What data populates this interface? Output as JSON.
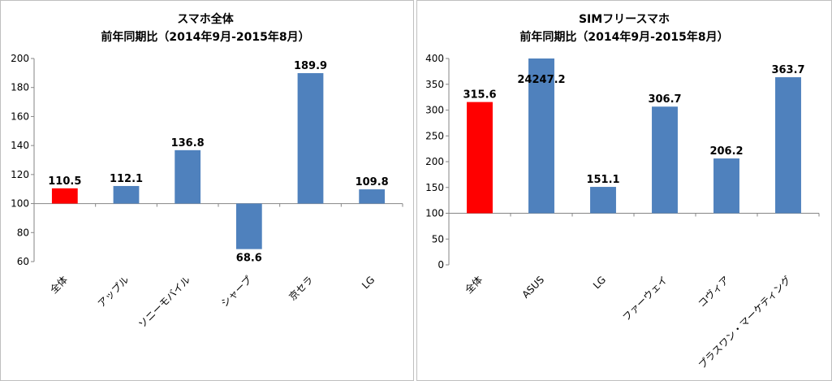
{
  "chart_data": [
    {
      "type": "bar",
      "title": "スマホ全体",
      "subtitle": "前年同期比（2014年9月-2015年8月）",
      "xlabel": "",
      "ylabel": "",
      "ylim": [
        60,
        200
      ],
      "yticks": [
        60,
        80,
        100,
        120,
        140,
        160,
        180,
        200
      ],
      "baseline": 100,
      "grid": false,
      "categories": [
        "全体",
        "アップル",
        "ソニーモバイル",
        "シャープ",
        "京セラ",
        "LG"
      ],
      "values": [
        110.5,
        112.1,
        136.8,
        68.6,
        189.9,
        109.8
      ],
      "value_labels": [
        "110.5",
        "112.1",
        "136.8",
        "68.6",
        "189.9",
        "109.8"
      ],
      "colors": [
        "#ff0000",
        "#4f81bd",
        "#4f81bd",
        "#4f81bd",
        "#4f81bd",
        "#4f81bd"
      ]
    },
    {
      "type": "bar",
      "title": "SIMフリースマホ",
      "subtitle": "前年同期比（2014年9月-2015年8月）",
      "xlabel": "",
      "ylabel": "",
      "ylim": [
        0,
        400
      ],
      "yticks": [
        0,
        50,
        100,
        150,
        200,
        250,
        300,
        350,
        400
      ],
      "baseline": 100,
      "grid": false,
      "categories": [
        "全体",
        "ASUS",
        "LG",
        "ファーウェイ",
        "コヴィア",
        "プラスワン・マーケティング"
      ],
      "values": [
        315.6,
        24247.2,
        151.1,
        306.7,
        206.2,
        363.7
      ],
      "value_labels": [
        "315.6",
        "24247.2",
        "151.1",
        "306.7",
        "206.2",
        "363.7"
      ],
      "colors": [
        "#ff0000",
        "#4f81bd",
        "#4f81bd",
        "#4f81bd",
        "#4f81bd",
        "#4f81bd"
      ]
    }
  ]
}
